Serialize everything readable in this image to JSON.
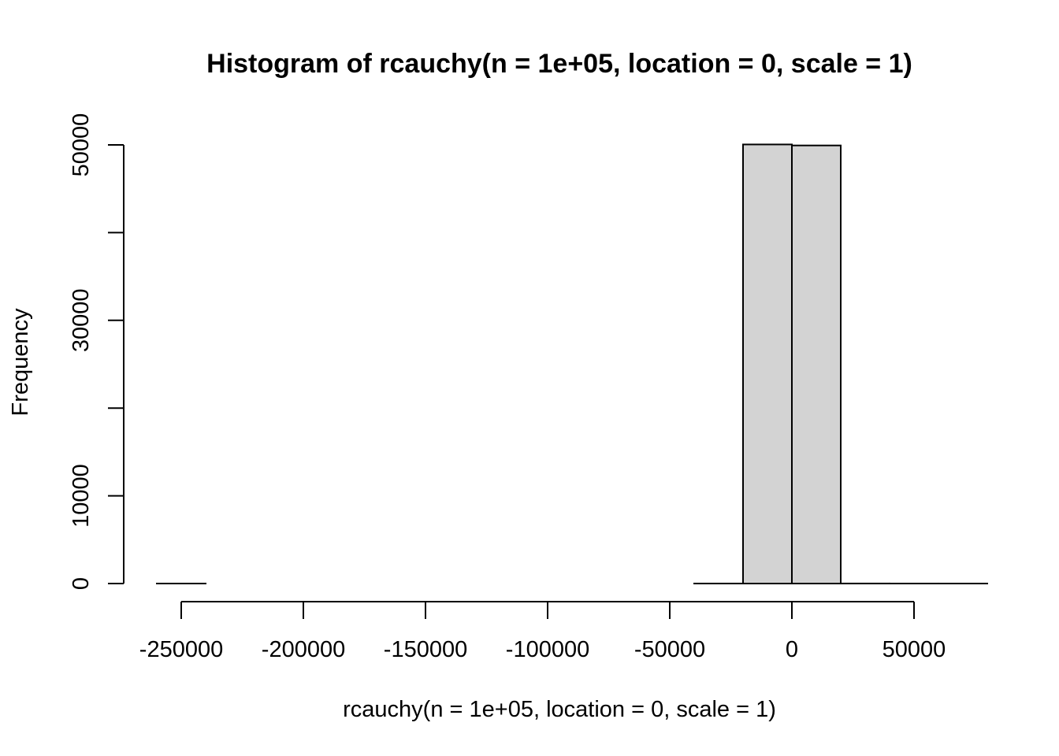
{
  "chart_data": {
    "type": "bar",
    "title": "Histogram of rcauchy(n = 1e+05, location = 0, scale = 1)",
    "xlabel": "rcauchy(n = 1e+05, location = 0, scale = 1)",
    "ylabel": "Frequency",
    "xlim": [
      -260000,
      70000
    ],
    "ylim": [
      0,
      50000
    ],
    "x_ticks": [
      -250000,
      -200000,
      -150000,
      -100000,
      -50000,
      0,
      50000
    ],
    "x_tick_labels": [
      "-250000",
      "-200000",
      "-150000",
      "-100000",
      "-50000",
      "0",
      "50000"
    ],
    "y_ticks": [
      0,
      10000,
      20000,
      30000,
      40000,
      50000
    ],
    "y_tick_labels": [
      "0",
      "10000",
      "",
      "30000",
      "",
      "50000"
    ],
    "bins": [
      {
        "start": -260000,
        "end": -240000,
        "count": 1
      },
      {
        "start": -240000,
        "end": -220000,
        "count": 0
      },
      {
        "start": -220000,
        "end": -200000,
        "count": 0
      },
      {
        "start": -200000,
        "end": -180000,
        "count": 0
      },
      {
        "start": -180000,
        "end": -160000,
        "count": 0
      },
      {
        "start": -160000,
        "end": -140000,
        "count": 0
      },
      {
        "start": -140000,
        "end": -120000,
        "count": 0
      },
      {
        "start": -120000,
        "end": -100000,
        "count": 0
      },
      {
        "start": -100000,
        "end": -80000,
        "count": 0
      },
      {
        "start": -80000,
        "end": -60000,
        "count": 0
      },
      {
        "start": -60000,
        "end": -40000,
        "count": 0
      },
      {
        "start": -40000,
        "end": -20000,
        "count": 3
      },
      {
        "start": -20000,
        "end": 0,
        "count": 50050
      },
      {
        "start": 0,
        "end": 20000,
        "count": 49936
      },
      {
        "start": 20000,
        "end": 40000,
        "count": 5
      },
      {
        "start": 40000,
        "end": 60000,
        "count": 2
      },
      {
        "start": 60000,
        "end": 80000,
        "count": 1
      }
    ],
    "bar_fill": "#d3d3d3",
    "bar_stroke": "#000000",
    "grid": false,
    "legend": "none"
  }
}
